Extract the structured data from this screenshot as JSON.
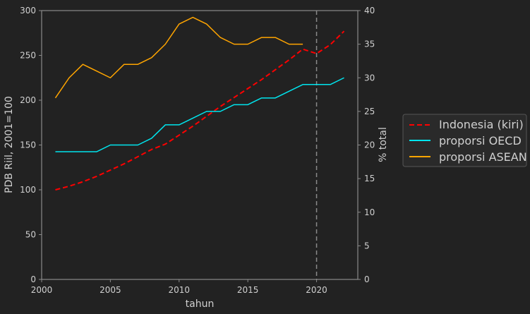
{
  "chart_data": {
    "type": "line",
    "title": "",
    "xlabel": "tahun",
    "ylabel": "PDB Riil, 2001=100",
    "y2label": "% total",
    "xlim": [
      2000,
      2023
    ],
    "ylim": [
      0,
      300
    ],
    "y2lim": [
      0,
      40
    ],
    "xticks": [
      2000,
      2005,
      2010,
      2015,
      2020
    ],
    "yticks": [
      0,
      50,
      100,
      150,
      200,
      250,
      300
    ],
    "y2ticks": [
      0,
      5,
      10,
      15,
      20,
      25,
      30,
      35,
      40
    ],
    "vline_x": 2020,
    "grid": false,
    "legend_position": "outside-right",
    "series": [
      {
        "name": "Indonesia (kiri)",
        "axis": "left",
        "color": "#ff0000",
        "style": "dashed",
        "x": [
          2001,
          2002,
          2003,
          2004,
          2005,
          2006,
          2007,
          2008,
          2009,
          2010,
          2011,
          2012,
          2013,
          2014,
          2015,
          2016,
          2017,
          2018,
          2019,
          2020,
          2021,
          2022
        ],
        "values": [
          100,
          104,
          109,
          115,
          122,
          129,
          137,
          145,
          151,
          161,
          171,
          182,
          193,
          203,
          213,
          223,
          234,
          245,
          257,
          252,
          262,
          277
        ]
      },
      {
        "name": "proporsi OECD",
        "axis": "right",
        "color": "#00e5ee",
        "style": "solid",
        "x": [
          2001,
          2002,
          2003,
          2004,
          2005,
          2006,
          2007,
          2008,
          2009,
          2010,
          2011,
          2012,
          2013,
          2014,
          2015,
          2016,
          2017,
          2018,
          2019,
          2020,
          2021,
          2022
        ],
        "values": [
          19,
          19,
          19,
          19,
          20,
          20,
          20,
          21,
          23,
          23,
          24,
          25,
          25,
          26,
          26,
          27,
          27,
          28,
          29,
          29,
          29,
          30
        ]
      },
      {
        "name": "proporsi ASEAN",
        "axis": "right",
        "color": "#ffa500",
        "style": "solid",
        "x": [
          2001,
          2002,
          2003,
          2004,
          2005,
          2006,
          2007,
          2008,
          2009,
          2010,
          2011,
          2012,
          2013,
          2014,
          2015,
          2016,
          2017,
          2018,
          2019
        ],
        "values": [
          27,
          30,
          32,
          31,
          30,
          32,
          32,
          33,
          35,
          38,
          39,
          38,
          36,
          35,
          35,
          36,
          36,
          35,
          35
        ]
      }
    ]
  }
}
